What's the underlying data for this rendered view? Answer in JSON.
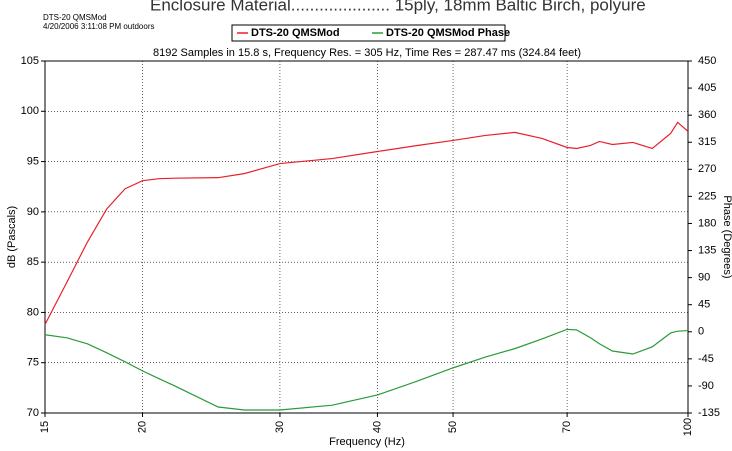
{
  "header": {
    "banner": "Enclosure Material..................... 15ply, 18mm Baltic Birch, polyure",
    "name": "DTS-20 QMSMod",
    "date": "4/20/2006 3:11:08 PM outdoors"
  },
  "chart_data": {
    "type": "line",
    "title": "8192 Samples in 15.8 s, Frequency Res. = 305 Hz, Time Res = 287.47 ms (324.84 feet)",
    "x_label": "Frequency (Hz)",
    "y_label": "dB (Pascals)",
    "y2_label": "Phase (Degrees)",
    "x_scale": "log",
    "grid": true,
    "x": [
      15,
      16,
      17,
      18,
      19,
      20,
      21,
      22,
      25,
      27,
      30,
      35,
      40,
      45,
      50,
      55,
      60,
      65,
      70,
      72,
      75,
      77,
      80,
      85,
      90,
      95,
      97,
      100
    ],
    "series": [
      {
        "name": "DTS-20 QMSMod",
        "color": "#e8202a",
        "axis": "y",
        "values": [
          78.8,
          83,
          87,
          90.3,
          92.3,
          93.1,
          93.3,
          93.35,
          93.4,
          93.8,
          94.8,
          95.3,
          96,
          96.6,
          97.1,
          97.6,
          97.9,
          97.3,
          96.4,
          96.3,
          96.6,
          97,
          96.7,
          96.9,
          96.3,
          97.8,
          98.9,
          98
        ]
      },
      {
        "name": "DTS-20 QMSMod Phase",
        "color": "#2a9a3a",
        "axis": "y2",
        "values": [
          -5,
          -10,
          -20,
          -35,
          -50,
          -65,
          -78,
          -90,
          -125,
          -130,
          -130,
          -122,
          -105,
          -82,
          -60,
          -42,
          -28,
          -12,
          4,
          3,
          -10,
          -20,
          -32,
          -37,
          -25,
          -2,
          1,
          2
        ]
      }
    ],
    "xlim": [
      15,
      100
    ],
    "xticks": [
      15,
      20,
      30,
      40,
      50,
      70,
      100
    ],
    "ylim": [
      70,
      105
    ],
    "yticks": [
      70,
      75,
      80,
      85,
      90,
      95,
      100,
      105
    ],
    "y2lim": [
      -135,
      450
    ],
    "y2ticks": [
      -135,
      -90,
      -45,
      0,
      45,
      90,
      135,
      180,
      225,
      270,
      315,
      360,
      405,
      450
    ],
    "legend": "top"
  }
}
